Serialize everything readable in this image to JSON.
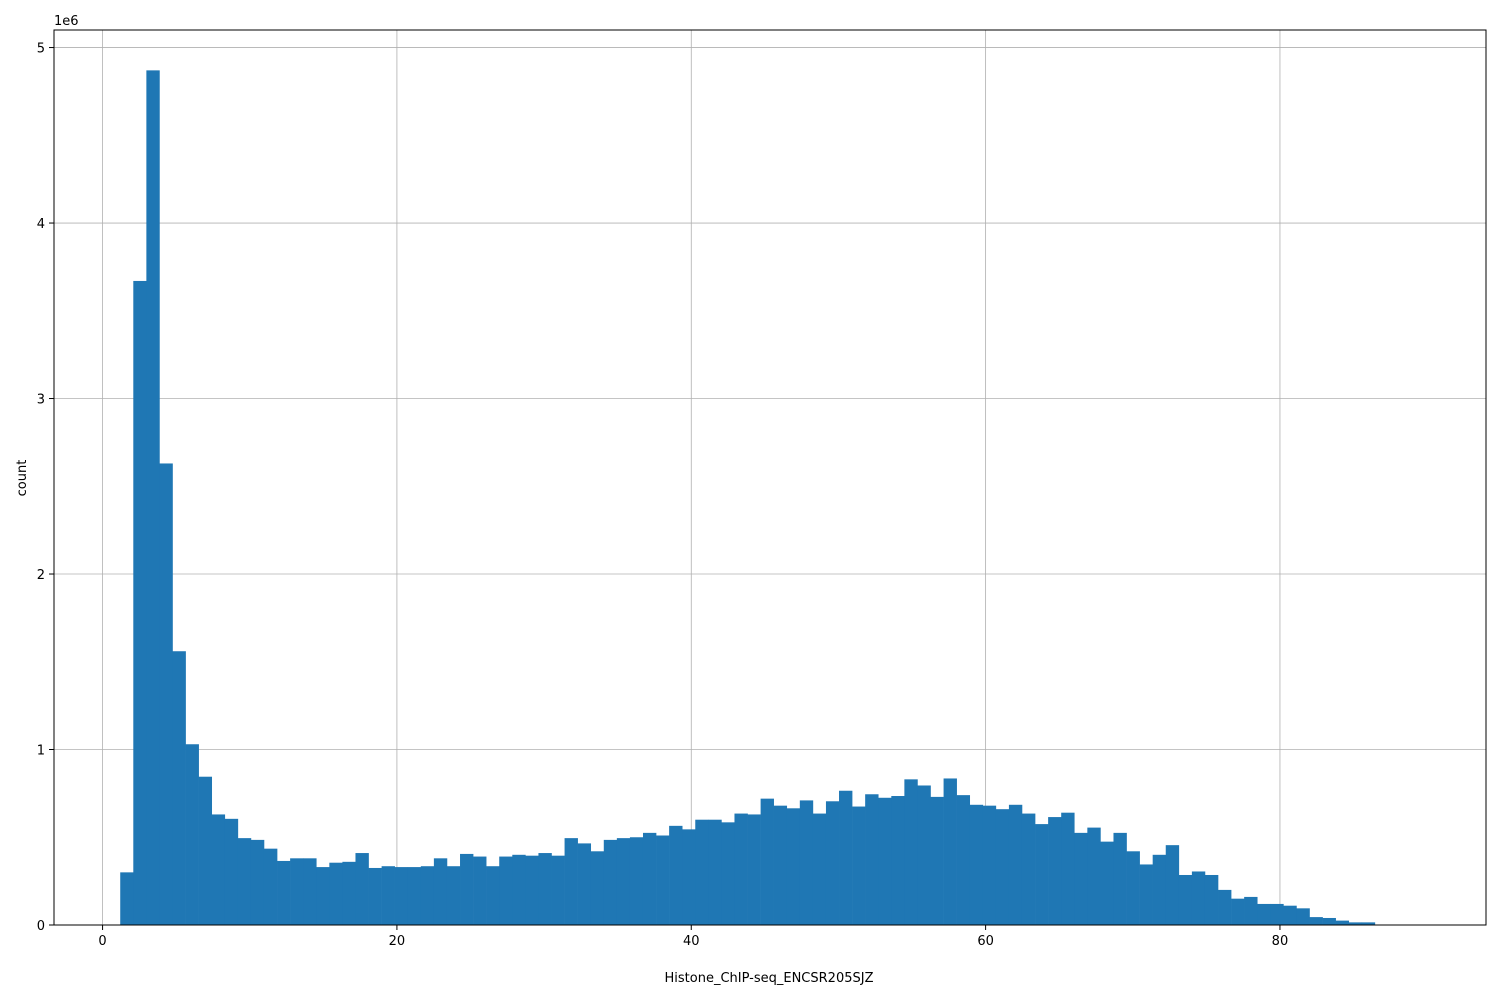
{
  "chart_data": {
    "type": "bar",
    "title": "",
    "xlabel": "Histone_ChIP-seq_ENCSR205SJZ",
    "ylabel": "count",
    "y_offset_label": "1e6",
    "y_scale": 1000000,
    "xlim": [
      -3.3,
      94.0
    ],
    "ylim": [
      0,
      5100000
    ],
    "xticks": [
      0,
      20,
      40,
      60,
      80
    ],
    "yticks": [
      0,
      1,
      2,
      3,
      4,
      5
    ],
    "grid": true,
    "bar_color": "#1f77b4",
    "bin_start": 1.2,
    "bin_width": 0.888,
    "values": [
      300000,
      3670000,
      4870000,
      2630000,
      1560000,
      1030000,
      845000,
      630000,
      605000,
      495000,
      485000,
      435000,
      365000,
      380000,
      380000,
      330000,
      355000,
      360000,
      410000,
      325000,
      335000,
      330000,
      330000,
      335000,
      380000,
      335000,
      405000,
      390000,
      335000,
      390000,
      400000,
      395000,
      410000,
      395000,
      495000,
      465000,
      420000,
      485000,
      495000,
      500000,
      525000,
      510000,
      565000,
      545000,
      600000,
      600000,
      585000,
      635000,
      630000,
      720000,
      680000,
      665000,
      710000,
      635000,
      705000,
      765000,
      675000,
      745000,
      725000,
      735000,
      830000,
      795000,
      730000,
      835000,
      740000,
      685000,
      680000,
      660000,
      685000,
      635000,
      575000,
      615000,
      640000,
      525000,
      555000,
      475000,
      525000,
      420000,
      345000,
      400000,
      455000,
      285000,
      305000,
      285000,
      200000,
      150000,
      160000,
      120000,
      120000,
      110000,
      95000,
      45000,
      40000,
      25000,
      15000,
      15000
    ]
  }
}
